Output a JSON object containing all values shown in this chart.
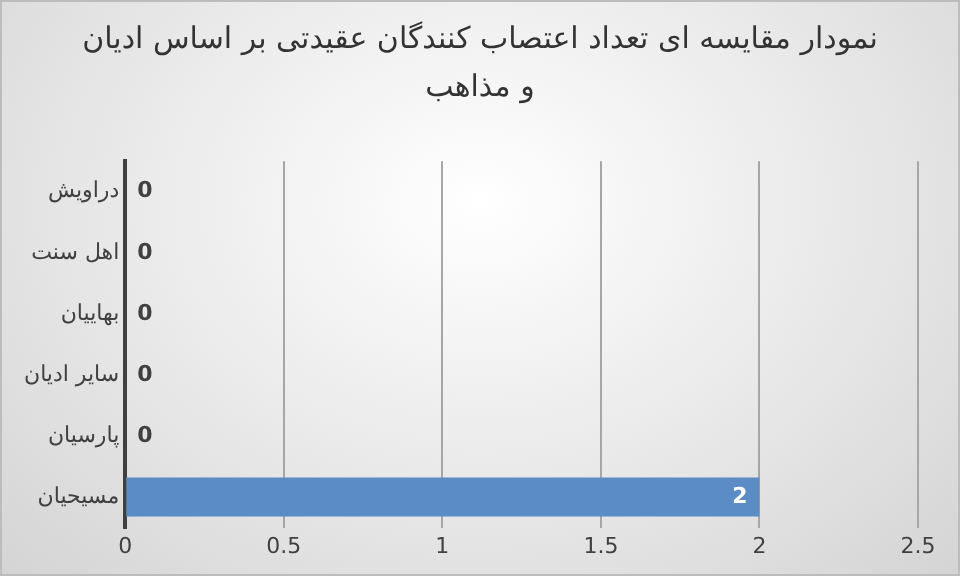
{
  "chart_data": {
    "type": "bar",
    "orientation": "horizontal",
    "title": "نمودار مقایسه ای تعداد اعتصاب کنندگان عقیدتی بر اساس ادیان و مذاهب",
    "categories": [
      "دراویش",
      "اهل سنت",
      "بهاییان",
      "سایر ادیان",
      "پارسیان",
      "مسیحیان"
    ],
    "values": [
      0,
      0,
      0,
      0,
      0,
      2
    ],
    "color": "#5b8cc6",
    "xlim": [
      0,
      2.5
    ],
    "xticks": [
      0,
      0.5,
      1,
      1.5,
      2,
      2.5
    ],
    "grid": "x",
    "data_labels": true
  }
}
